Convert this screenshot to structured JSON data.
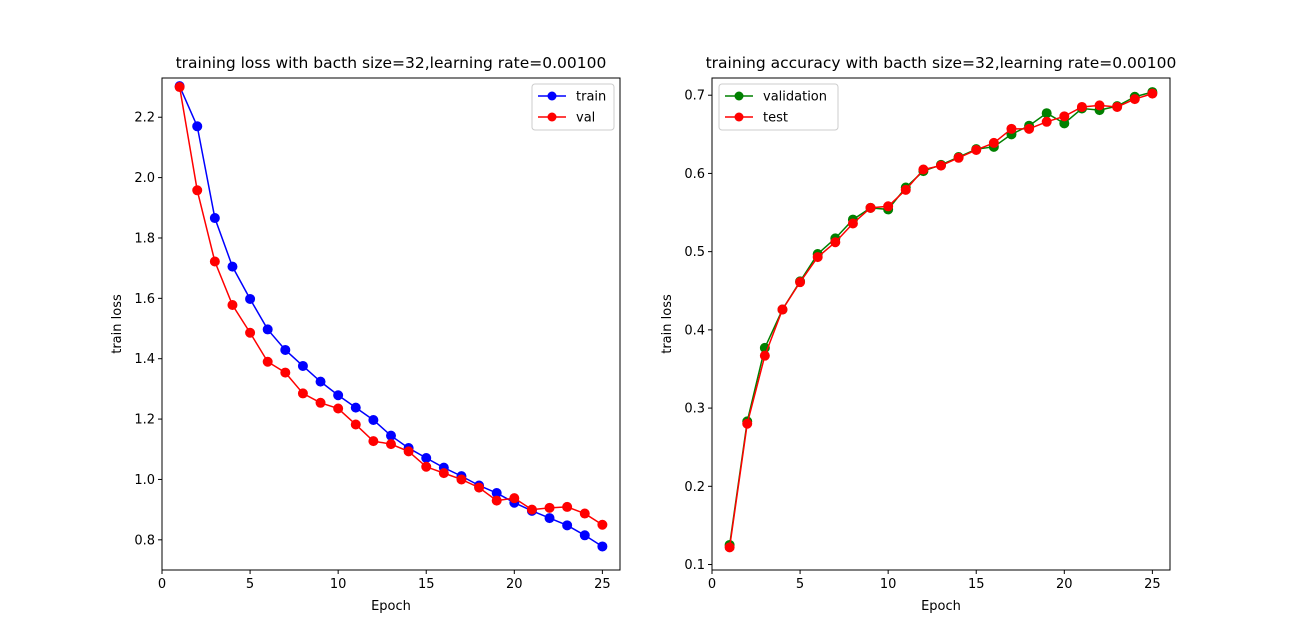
{
  "chart_data": [
    {
      "type": "line",
      "title": "training loss with bacth size=32,learning rate=0.00100",
      "xlabel": "Epoch",
      "ylabel": "train loss",
      "xlim": [
        0,
        26
      ],
      "ylim": [
        0.7,
        2.33
      ],
      "xticks": [
        0,
        5,
        10,
        15,
        20,
        25
      ],
      "xtick_labels": [
        "0",
        "5",
        "10",
        "15",
        "20",
        "25"
      ],
      "yticks": [
        0.8,
        1.0,
        1.2,
        1.4,
        1.6,
        1.8,
        2.0,
        2.2
      ],
      "ytick_labels": [
        "0.8",
        "1.0",
        "1.2",
        "1.4",
        "1.6",
        "1.8",
        "2.0",
        "2.2"
      ],
      "grid": false,
      "legend": "top-right",
      "x": [
        1,
        2,
        3,
        4,
        5,
        6,
        7,
        8,
        9,
        10,
        11,
        12,
        13,
        14,
        15,
        16,
        17,
        18,
        19,
        20,
        21,
        22,
        23,
        24,
        25
      ],
      "series": [
        {
          "name": "train",
          "color": "#0000ff",
          "marker": "circle",
          "values": [
            2.303,
            2.17,
            1.866,
            1.705,
            1.598,
            1.497,
            1.429,
            1.376,
            1.324,
            1.279,
            1.238,
            1.197,
            1.145,
            1.104,
            1.071,
            1.039,
            1.011,
            0.98,
            0.955,
            0.923,
            0.896,
            0.872,
            0.848,
            0.815,
            0.778
          ]
        },
        {
          "name": "val",
          "color": "#ff0000",
          "marker": "circle",
          "values": [
            2.3,
            1.958,
            1.722,
            1.578,
            1.486,
            1.39,
            1.354,
            1.285,
            1.254,
            1.235,
            1.182,
            1.127,
            1.117,
            1.093,
            1.042,
            1.021,
            1.0,
            0.973,
            0.93,
            0.938,
            0.9,
            0.906,
            0.909,
            0.887,
            0.85
          ]
        }
      ]
    },
    {
      "type": "line",
      "title": "training accuracy with bacth size=32,learning rate=0.00100",
      "xlabel": "Epoch",
      "ylabel": "train loss",
      "xlim": [
        0,
        26
      ],
      "ylim": [
        0.093,
        0.722
      ],
      "xticks": [
        0,
        5,
        10,
        15,
        20,
        25
      ],
      "xtick_labels": [
        "0",
        "5",
        "10",
        "15",
        "20",
        "25"
      ],
      "yticks": [
        0.1,
        0.2,
        0.3,
        0.4,
        0.5,
        0.6,
        0.7
      ],
      "ytick_labels": [
        "0.1",
        "0.2",
        "0.3",
        "0.4",
        "0.5",
        "0.6",
        "0.7"
      ],
      "grid": false,
      "legend": "top-left",
      "x": [
        1,
        2,
        3,
        4,
        5,
        6,
        7,
        8,
        9,
        10,
        11,
        12,
        13,
        14,
        15,
        16,
        17,
        18,
        19,
        20,
        21,
        22,
        23,
        24,
        25
      ],
      "series": [
        {
          "name": "validation",
          "color": "#008000",
          "marker": "circle",
          "values": [
            0.125,
            0.283,
            0.377,
            0.426,
            0.462,
            0.497,
            0.517,
            0.541,
            0.556,
            0.554,
            0.582,
            0.603,
            0.611,
            0.621,
            0.631,
            0.634,
            0.65,
            0.661,
            0.677,
            0.664,
            0.683,
            0.681,
            0.686,
            0.698,
            0.704
          ]
        },
        {
          "name": "test",
          "color": "#ff0000",
          "marker": "circle",
          "values": [
            0.122,
            0.28,
            0.367,
            0.426,
            0.461,
            0.493,
            0.512,
            0.536,
            0.556,
            0.558,
            0.579,
            0.605,
            0.61,
            0.62,
            0.63,
            0.639,
            0.657,
            0.657,
            0.666,
            0.673,
            0.685,
            0.687,
            0.685,
            0.695,
            0.702
          ]
        }
      ]
    }
  ]
}
